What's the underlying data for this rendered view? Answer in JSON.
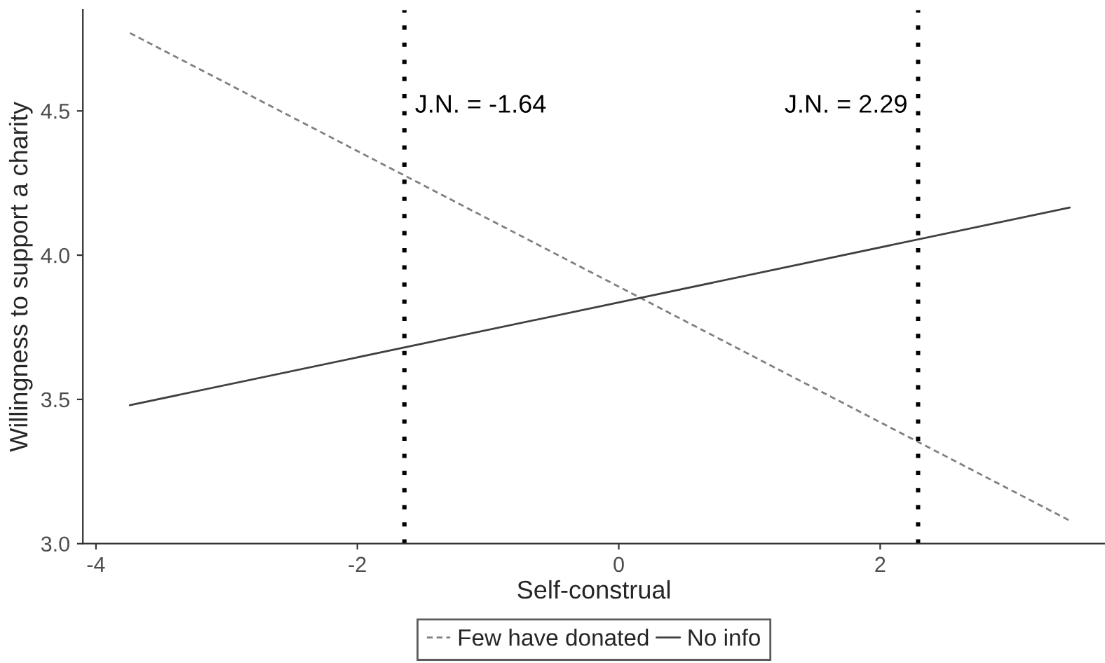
{
  "chart_data": {
    "type": "line",
    "xlabel": "Self-construal",
    "ylabel": "Willingness to support a charity",
    "xlim": [
      -4.1,
      3.72
    ],
    "ylim": [
      3.0,
      4.85
    ],
    "xticks": [
      {
        "value": -4,
        "label": "-4"
      },
      {
        "value": -2,
        "label": "-2"
      },
      0,
      2
    ],
    "yticks": [
      {
        "value": 3.0,
        "label": "3.0"
      },
      3.5,
      {
        "value": 4.0,
        "label": "4.0"
      },
      4.5
    ],
    "x": [
      -3.74,
      3.45
    ],
    "series": [
      {
        "name": "Few have donated",
        "color": "#808080",
        "line_style": "dashed",
        "values": [
          4.77,
          3.08
        ]
      },
      {
        "name": "No info",
        "color": "#404040",
        "line_style": "solid",
        "values": [
          3.48,
          4.165
        ]
      }
    ],
    "ref_lines": [
      {
        "axis": "x",
        "value": -1.64,
        "label": "J.N. = -1.64",
        "color": "#000000",
        "line_style": "dotted"
      },
      {
        "axis": "x",
        "value": 2.29,
        "label": "J.N. = 2.29",
        "color": "#000000",
        "line_style": "dotted"
      }
    ],
    "grid": false,
    "legend": "bottom"
  }
}
